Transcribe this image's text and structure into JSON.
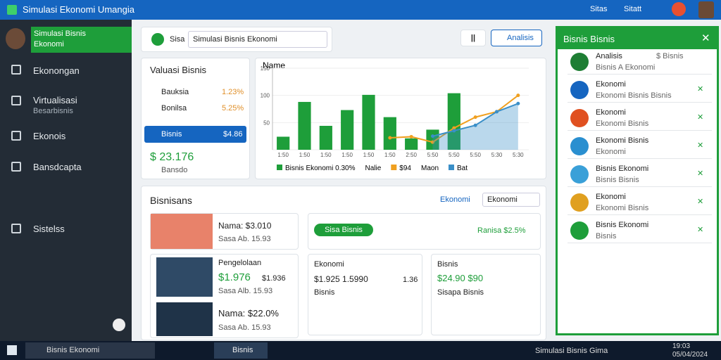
{
  "header": {
    "title": "Simulasi Ekonomi Umangia",
    "links": [
      "Sitas",
      "Sitatt"
    ]
  },
  "sidebar": {
    "active": [
      "Simulasi Bisnis",
      "Ekonomi"
    ],
    "items": [
      "Ekonongan",
      "Virtualisasi",
      "Ekonois",
      "Bansdcapta",
      "Sistelss"
    ],
    "item_sub": "Besarbisnis"
  },
  "toolbar": {
    "label": "Sisa",
    "search": "Simulasi Bisnis Ekonomi",
    "pause": "||",
    "button": "Analisis"
  },
  "valuation": {
    "title": "Valuasi Bisnis",
    "rows": [
      [
        "Bauksia",
        "1.23%"
      ],
      [
        "Bonilsa",
        "5.25%"
      ],
      [
        "Bisnis",
        "$4.86"
      ]
    ],
    "total": "$ 23.176",
    "total_sub": "Bansdo"
  },
  "chart_data": {
    "type": "combo",
    "title": "Name",
    "categories": [
      "1:50",
      "1:50",
      "1:50",
      "1:50",
      "1:50",
      "1:50",
      "2:50",
      "5:50",
      "5:50",
      "5:50",
      "5:30",
      "5:30"
    ],
    "series": [
      {
        "name": "Bisnis Ekonomi 0.30%",
        "kind": "bar",
        "color": "#1e9e3a",
        "values": [
          24,
          88,
          44,
          73,
          101,
          60,
          21,
          37,
          104,
          null,
          null,
          null
        ]
      },
      {
        "name": "$94",
        "kind": "line",
        "color": "#f0a020",
        "values": [
          null,
          null,
          null,
          null,
          null,
          22,
          24,
          14,
          40,
          60,
          70,
          100
        ]
      },
      {
        "name": "Bat",
        "kind": "area",
        "color": "#3a8fc8",
        "values": [
          null,
          null,
          null,
          null,
          null,
          null,
          null,
          25,
          35,
          45,
          70,
          85
        ]
      }
    ],
    "legend_extra": [
      "Nalie",
      "Maon"
    ],
    "ylim": [
      0,
      150
    ],
    "yticks": [
      0,
      50,
      100,
      150
    ]
  },
  "business": {
    "title": "Bisnisans",
    "filter": "Ekonomi",
    "dropdown": "Ekonomi",
    "products": [
      {
        "name": "Nama: $3.010",
        "sub": "Sasa Ab. 15.93"
      },
      {
        "name": "Pengelolaan",
        "price": "$1.976",
        "price2": "$1.936",
        "sub": "Sasa Alb. 15.93"
      },
      {
        "name": "Nama: $22.0%",
        "sub": "Sasa Ab. 15.93"
      }
    ],
    "pill": "Sisa Bisnis",
    "ratio": "Ranisa $2.5%",
    "cards": [
      {
        "title": "Ekonomi",
        "value": "$1.925 1.5990",
        "side": "1.36",
        "sub": "Bisnis"
      },
      {
        "title": "Bisnis",
        "value": "$24.90 $90",
        "sub": "Sisapa Bisnis"
      }
    ]
  },
  "panel": {
    "title": "Bisnis Bisnis",
    "items": [
      [
        "Analisis",
        "Bisnis A Ekonomi",
        "$ Bisnis"
      ],
      [
        "Ekonomi",
        "Ekonomi Bisnis Bisnis"
      ],
      [
        "Ekonomi",
        "Ekonomi Bisnis"
      ],
      [
        "Ekonomi Bisnis",
        "Ekonomi"
      ],
      [
        "Bisnis Ekonomi",
        "Bisnis Bisnis"
      ],
      [
        "Ekonomi",
        "Ekonomi Bisnis"
      ],
      [
        "Bisnis Ekonomi",
        "Bisnis"
      ]
    ]
  },
  "taskbar": {
    "search": "Bisnis Ekonomi",
    "app": "Bisnis",
    "status": "Simulasi Bisnis Gima",
    "time": "19:03",
    "date": "05/04/2024"
  }
}
